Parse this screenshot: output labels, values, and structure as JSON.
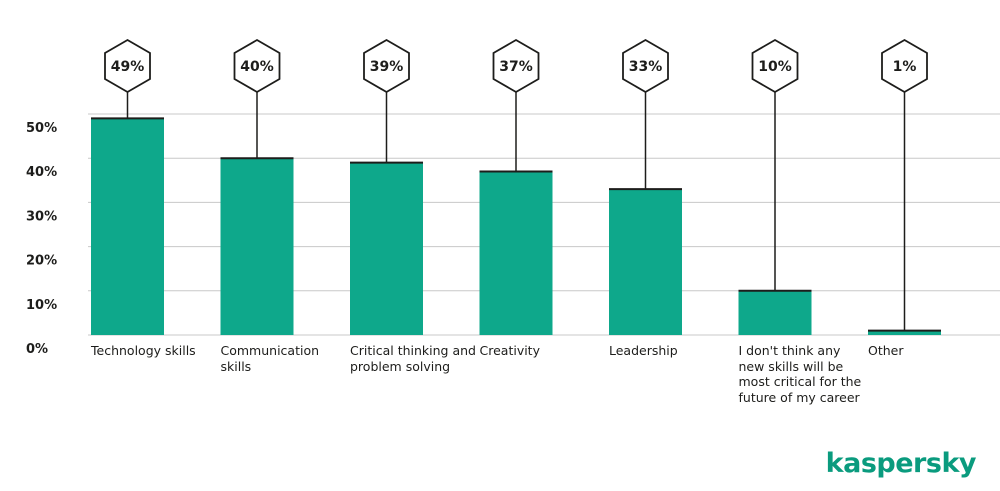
{
  "brand": {
    "name": "kaspersky",
    "color": "#0a9b7e"
  },
  "chart_data": {
    "type": "bar",
    "categories": [
      "Technology skills",
      "Communication skills",
      "Critical thinking and problem solving",
      "Creativity",
      "Leadership",
      "I don't think any new skills will be most critical for the future of my career",
      "Other"
    ],
    "values": [
      49,
      40,
      39,
      37,
      33,
      10,
      1
    ],
    "value_labels": [
      "49%",
      "40%",
      "39%",
      "37%",
      "33%",
      "10%",
      "1%"
    ],
    "ylim": [
      0,
      50
    ],
    "yticks": [
      "0%",
      "10%",
      "20%",
      "30%",
      "40%",
      "50%"
    ],
    "grid": true,
    "colors": {
      "bar": "#0ea88b",
      "bar_top": "#1d1d1b",
      "grid": "#c8c8c8",
      "text": "#1d1d1b"
    },
    "title": "",
    "xlabel": "",
    "ylabel": ""
  }
}
